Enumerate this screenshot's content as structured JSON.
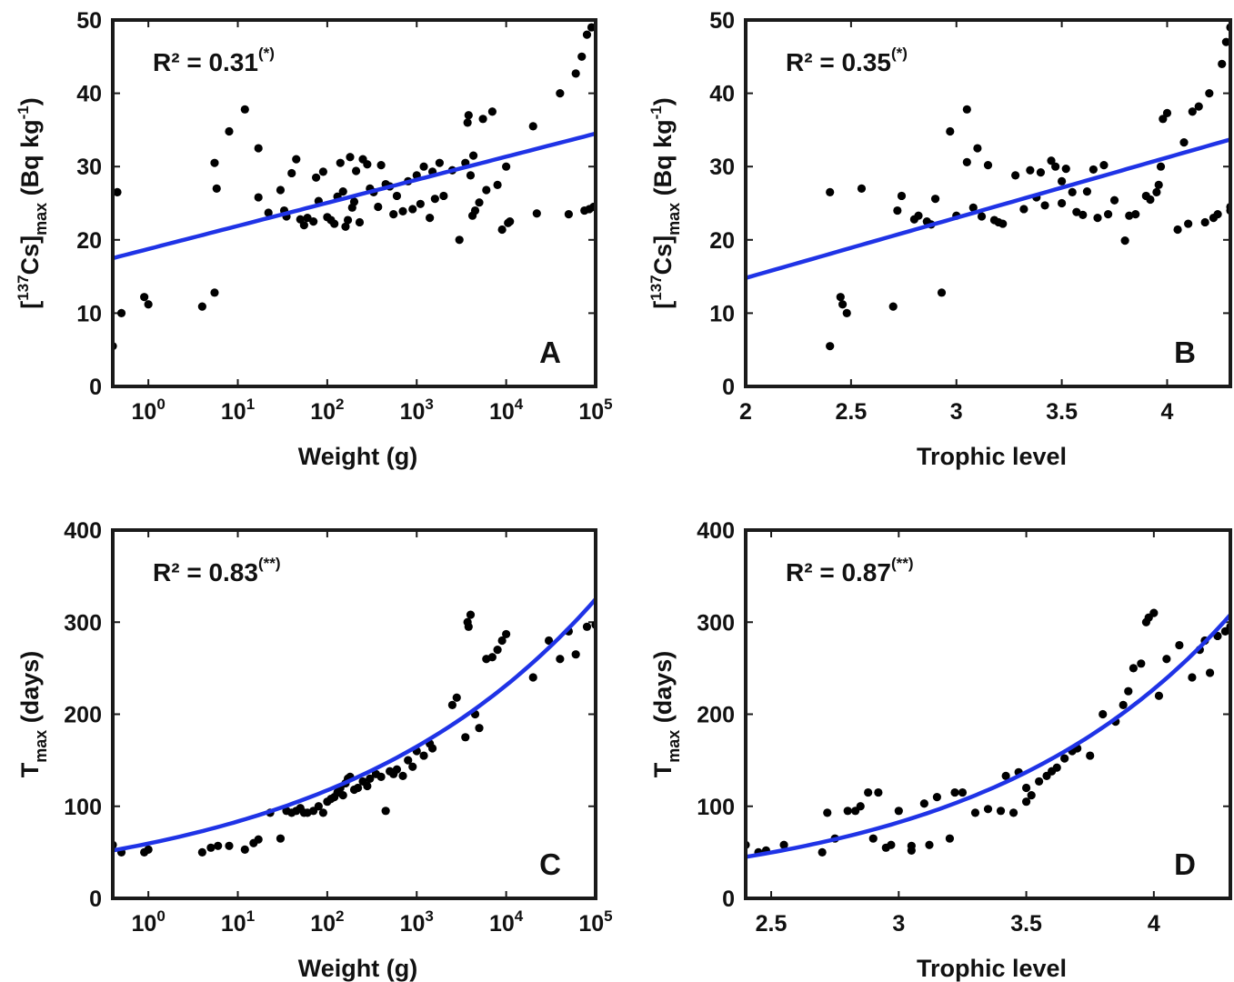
{
  "colors": {
    "fit": "#1f33e6",
    "points": "#000000",
    "frame": "#1a1a1a"
  },
  "chart_data": [
    {
      "panel": "A",
      "type": "scatter",
      "xscale": "log",
      "xlim": [
        0.4,
        100000
      ],
      "ylim": [
        0,
        50
      ],
      "xticks": [
        1,
        10,
        100,
        1000,
        10000,
        100000
      ],
      "xticklabels": [
        "10^0",
        "10^1",
        "10^2",
        "10^3",
        "10^4",
        "10^5"
      ],
      "yticks": [
        0,
        10,
        20,
        30,
        40,
        50
      ],
      "xlabel": "Weight (g)",
      "ylabel": "[137Cs]max (Bq kg-1)",
      "r2_text": "R² = 0.31",
      "r2_mark": "(*)",
      "fit": {
        "type": "linear-in-log10x",
        "x": [
          0.4,
          100000
        ],
        "y": [
          17.5,
          34.5
        ]
      },
      "x": [
        0.4,
        0.45,
        0.5,
        0.9,
        1.0,
        4,
        5.5,
        5.8,
        5.5,
        8,
        12,
        17,
        17,
        22,
        30,
        33,
        35,
        40,
        45,
        50,
        55,
        60,
        70,
        75,
        80,
        90,
        100,
        110,
        120,
        130,
        140,
        150,
        160,
        170,
        180,
        190,
        200,
        210,
        230,
        250,
        280,
        300,
        330,
        370,
        400,
        450,
        500,
        550,
        600,
        700,
        800,
        900,
        1000,
        1100,
        1200,
        1400,
        1500,
        1600,
        1800,
        2000,
        2500,
        3000,
        3500,
        3700,
        3800,
        4000,
        4200,
        4300,
        4500,
        5000,
        5500,
        6000,
        7000,
        8000,
        9000,
        10000,
        10500,
        11000,
        20000,
        22000,
        40000,
        50000,
        60000,
        70000,
        75000,
        80000,
        85000,
        90000,
        95000,
        100000
      ],
      "y": [
        5.5,
        26.5,
        10,
        12.2,
        11.2,
        10.9,
        12.8,
        27,
        30.5,
        34.8,
        37.8,
        32.5,
        25.8,
        23.7,
        26.8,
        24,
        23.2,
        29.1,
        31,
        22.8,
        22,
        23,
        22.5,
        28.5,
        25.3,
        29.3,
        23.1,
        22.7,
        22.2,
        25.9,
        30.5,
        26.6,
        21.8,
        22.7,
        31.3,
        24.4,
        25.2,
        29.4,
        22.4,
        31,
        30.3,
        27,
        26.5,
        24.5,
        30.2,
        27.6,
        27.3,
        23.5,
        26,
        23.9,
        28,
        24.2,
        28.8,
        24.9,
        30,
        23,
        29.3,
        25.6,
        30.5,
        26,
        29.5,
        20,
        30.5,
        36,
        37,
        28.8,
        23.3,
        31.5,
        24,
        25.1,
        36.5,
        26.8,
        37.5,
        27.5,
        21.4,
        30,
        22.3,
        22.5,
        35.5,
        23.6,
        40,
        23.5,
        42.7,
        45,
        24,
        48,
        24.2,
        49,
        24.5,
        24.5
      ]
    },
    {
      "panel": "B",
      "type": "scatter",
      "xscale": "linear",
      "xlim": [
        2,
        4.3
      ],
      "ylim": [
        0,
        50
      ],
      "xticks": [
        2,
        2.5,
        3,
        3.5,
        4
      ],
      "xticklabels": [
        "2",
        "2.5",
        "3",
        "3.5",
        "4"
      ],
      "yticks": [
        0,
        10,
        20,
        30,
        40,
        50
      ],
      "xlabel": "Trophic level",
      "ylabel": "[137Cs]max (Bq kg-1)",
      "r2_text": "R² = 0.35",
      "r2_mark": "(*)",
      "fit": {
        "type": "linear",
        "x": [
          2,
          4.3
        ],
        "y": [
          14.8,
          33.7
        ]
      },
      "x": [
        2.4,
        2.4,
        2.45,
        2.46,
        2.48,
        2.55,
        2.7,
        2.72,
        2.74,
        2.8,
        2.82,
        2.86,
        2.88,
        2.9,
        2.93,
        2.97,
        3.0,
        3.05,
        3.05,
        3.08,
        3.1,
        3.12,
        3.15,
        3.18,
        3.2,
        3.22,
        3.28,
        3.32,
        3.35,
        3.38,
        3.4,
        3.42,
        3.45,
        3.47,
        3.5,
        3.5,
        3.52,
        3.55,
        3.57,
        3.6,
        3.62,
        3.65,
        3.67,
        3.7,
        3.72,
        3.75,
        3.8,
        3.82,
        3.85,
        3.9,
        3.92,
        3.95,
        3.96,
        3.97,
        3.98,
        4.0,
        4.05,
        4.08,
        4.1,
        4.12,
        4.15,
        4.18,
        4.2,
        4.22,
        4.24,
        4.26,
        4.28,
        4.3,
        4.3,
        4.3
      ],
      "y": [
        5.5,
        26.5,
        12.2,
        11.2,
        10,
        27,
        10.9,
        24,
        26,
        22.8,
        23.3,
        22.5,
        22.1,
        25.6,
        12.8,
        34.8,
        23.3,
        37.8,
        30.6,
        24.4,
        32.5,
        23.2,
        30.2,
        22.7,
        22.4,
        22.2,
        28.8,
        24.2,
        29.5,
        25.8,
        29.2,
        24.7,
        30.8,
        30,
        28,
        25,
        29.7,
        26.5,
        23.8,
        23.4,
        26.6,
        29.6,
        23,
        30.2,
        23.5,
        25.4,
        19.9,
        23.3,
        23.5,
        26,
        25.5,
        26.5,
        27.5,
        30,
        36.5,
        37.3,
        21.4,
        33.3,
        22.2,
        37.5,
        38.2,
        22.4,
        40,
        23,
        23.5,
        44,
        47,
        49,
        24,
        24.5
      ]
    },
    {
      "panel": "C",
      "type": "scatter",
      "xscale": "log",
      "xlim": [
        0.4,
        100000
      ],
      "ylim": [
        0,
        400
      ],
      "xticks": [
        1,
        10,
        100,
        1000,
        10000,
        100000
      ],
      "xticklabels": [
        "10^0",
        "10^1",
        "10^2",
        "10^3",
        "10^4",
        "10^5"
      ],
      "yticks": [
        0,
        100,
        200,
        300,
        400
      ],
      "xlabel": "Weight (g)",
      "ylabel": "Tmax (days)",
      "r2_text": "R² = 0.83",
      "r2_mark": "(**)",
      "fit": {
        "type": "exp-in-log10x",
        "x": [
          0.4,
          100000
        ],
        "y": [
          52,
          325
        ]
      },
      "x": [
        0.4,
        0.5,
        0.9,
        1.0,
        4,
        5,
        6,
        8,
        12,
        15,
        17,
        23,
        30,
        35,
        40,
        45,
        50,
        55,
        60,
        70,
        80,
        90,
        100,
        110,
        120,
        130,
        140,
        150,
        160,
        170,
        180,
        200,
        220,
        250,
        280,
        300,
        350,
        400,
        450,
        500,
        550,
        600,
        700,
        800,
        900,
        1000,
        1200,
        1400,
        1500,
        2500,
        2800,
        3500,
        3700,
        3800,
        4000,
        4500,
        5000,
        6000,
        7000,
        8000,
        9000,
        10000,
        20000,
        30000,
        40000,
        50000,
        60000,
        80000,
        100000
      ],
      "y": [
        58,
        50,
        50,
        53,
        50,
        55,
        57,
        57,
        53,
        60,
        64,
        93,
        65,
        95,
        93,
        95,
        98,
        93,
        93,
        95,
        100,
        93,
        105,
        108,
        110,
        115,
        120,
        112,
        125,
        130,
        132,
        118,
        120,
        127,
        122,
        130,
        135,
        132,
        95,
        138,
        135,
        140,
        133,
        150,
        143,
        160,
        155,
        168,
        163,
        210,
        218,
        175,
        300,
        295,
        308,
        200,
        185,
        260,
        262,
        270,
        280,
        287,
        240,
        280,
        260,
        290,
        265,
        295,
        297
      ]
    },
    {
      "panel": "D",
      "type": "scatter",
      "xscale": "linear",
      "xlim": [
        2.4,
        4.3
      ],
      "ylim": [
        0,
        400
      ],
      "xticks": [
        2.5,
        3,
        3.5,
        4
      ],
      "xticklabels": [
        "2.5",
        "3",
        "3.5",
        "4"
      ],
      "yticks": [
        0,
        100,
        200,
        300,
        400
      ],
      "xlabel": "Trophic level",
      "ylabel": "Tmax (days)",
      "r2_text": "R² = 0.87",
      "r2_mark": "(**)",
      "fit": {
        "type": "exponential",
        "x": [
          2.4,
          4.3
        ],
        "y": [
          45,
          308
        ]
      },
      "x": [
        2.4,
        2.45,
        2.48,
        2.55,
        2.7,
        2.72,
        2.75,
        2.8,
        2.83,
        2.85,
        2.88,
        2.9,
        2.92,
        2.95,
        2.97,
        3.0,
        3.05,
        3.05,
        3.1,
        3.12,
        3.15,
        3.2,
        3.22,
        3.25,
        3.3,
        3.35,
        3.4,
        3.42,
        3.45,
        3.47,
        3.5,
        3.5,
        3.52,
        3.55,
        3.58,
        3.6,
        3.62,
        3.65,
        3.68,
        3.7,
        3.75,
        3.8,
        3.85,
        3.88,
        3.9,
        3.92,
        3.95,
        3.97,
        3.98,
        4.0,
        4.02,
        4.05,
        4.1,
        4.15,
        4.18,
        4.2,
        4.22,
        4.25,
        4.28,
        4.3
      ],
      "y": [
        58,
        50,
        52,
        58,
        50,
        93,
        65,
        95,
        95,
        100,
        115,
        65,
        115,
        55,
        58,
        95,
        52,
        57,
        103,
        58,
        110,
        65,
        115,
        115,
        93,
        97,
        95,
        133,
        93,
        137,
        105,
        120,
        112,
        127,
        133,
        138,
        142,
        152,
        160,
        163,
        155,
        200,
        192,
        210,
        225,
        250,
        255,
        300,
        305,
        310,
        220,
        260,
        275,
        240,
        270,
        280,
        245,
        285,
        290,
        295
      ]
    }
  ],
  "panels": [
    {
      "letter": "A",
      "r2_text": "R² = 0.31",
      "r2_mark": "(*)",
      "xlabel": "Weight (g)",
      "ylabel": {
        "open": "[",
        "sup": "137",
        "main": "Cs]",
        "sub": "max",
        "unit": " (Bq kg",
        "unit_sup": "-1",
        "close": ")"
      },
      "ytick_labels": [
        "0",
        "10",
        "20",
        "30",
        "40",
        "50"
      ],
      "xtick_labels": [
        {
          "base": "10",
          "exp": "0"
        },
        {
          "base": "10",
          "exp": "1"
        },
        {
          "base": "10",
          "exp": "2"
        },
        {
          "base": "10",
          "exp": "3"
        },
        {
          "base": "10",
          "exp": "4"
        },
        {
          "base": "10",
          "exp": "5"
        }
      ]
    },
    {
      "letter": "B",
      "r2_text": "R² = 0.35",
      "r2_mark": "(*)",
      "xlabel": "Trophic level",
      "ylabel": {
        "open": "[",
        "sup": "137",
        "main": "Cs]",
        "sub": "max",
        "unit": " (Bq kg",
        "unit_sup": "-1",
        "close": ")"
      },
      "ytick_labels": [
        "0",
        "10",
        "20",
        "30",
        "40",
        "50"
      ],
      "xtick_labels": [
        {
          "base": "2",
          "exp": ""
        },
        {
          "base": "2.5",
          "exp": ""
        },
        {
          "base": "3",
          "exp": ""
        },
        {
          "base": "3.5",
          "exp": ""
        },
        {
          "base": "4",
          "exp": ""
        }
      ]
    },
    {
      "letter": "C",
      "r2_text": "R² = 0.83",
      "r2_mark": "(**)",
      "xlabel": "Weight (g)",
      "ylabel": {
        "open": "",
        "sup": "",
        "main": "T",
        "sub": "max",
        "unit": " (days)",
        "unit_sup": "",
        "close": ""
      },
      "ytick_labels": [
        "0",
        "100",
        "200",
        "300",
        "400"
      ],
      "xtick_labels": [
        {
          "base": "10",
          "exp": "0"
        },
        {
          "base": "10",
          "exp": "1"
        },
        {
          "base": "10",
          "exp": "2"
        },
        {
          "base": "10",
          "exp": "3"
        },
        {
          "base": "10",
          "exp": "4"
        },
        {
          "base": "10",
          "exp": "5"
        }
      ]
    },
    {
      "letter": "D",
      "r2_text": "R² = 0.87",
      "r2_mark": "(**)",
      "xlabel": "Trophic level",
      "ylabel": {
        "open": "",
        "sup": "",
        "main": "T",
        "sub": "max",
        "unit": " (days)",
        "unit_sup": "",
        "close": ""
      },
      "ytick_labels": [
        "0",
        "100",
        "200",
        "300",
        "400"
      ],
      "xtick_labels": [
        {
          "base": "2.5",
          "exp": ""
        },
        {
          "base": "3",
          "exp": ""
        },
        {
          "base": "3.5",
          "exp": ""
        },
        {
          "base": "4",
          "exp": ""
        }
      ]
    }
  ]
}
